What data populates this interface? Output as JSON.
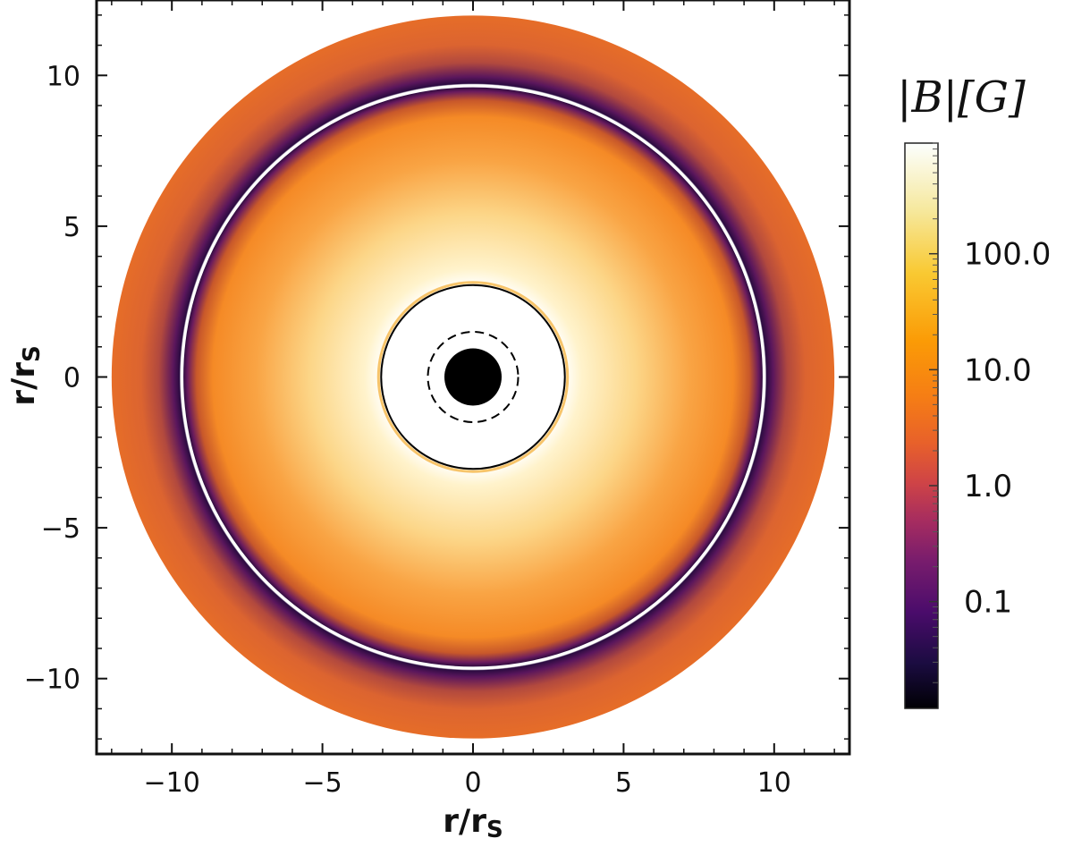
{
  "chart_data": {
    "type": "heatmap",
    "title": "",
    "xlabel": "r/r",
    "xlabel_sub": "S",
    "ylabel": "r/r",
    "ylabel_sub": "S",
    "xlim": [
      -12.5,
      12.5
    ],
    "ylim": [
      -12.5,
      12.5
    ],
    "x_ticks": [
      -10,
      -5,
      0,
      5,
      10
    ],
    "y_ticks": [
      -10,
      -5,
      0,
      5,
      10
    ],
    "x_tick_labels": [
      "−10",
      "−5",
      "0",
      "5",
      "10"
    ],
    "y_tick_labels": [
      "−10",
      "−5",
      "0",
      "5",
      "10"
    ],
    "grid": false,
    "colorbar": {
      "title": "|B|[G]",
      "scale": "log",
      "range": [
        0.012,
        900
      ],
      "ticks": [
        100.0,
        10.0,
        1.0,
        0.1
      ],
      "tick_labels": [
        "100.0",
        "10.0",
        "1.0",
        "0.1"
      ],
      "colormap": "inferno"
    },
    "rings": [
      {
        "name": "outer-boundary",
        "radius": 12.0
      },
      {
        "name": "field-null-ring",
        "radius": 9.65,
        "color": "#ffffff"
      },
      {
        "name": "inner-field-boundary",
        "radius": 3.05,
        "color": "#000000"
      },
      {
        "name": "dashed-circle",
        "radius": 1.5,
        "style": "dashed"
      },
      {
        "name": "central-disk",
        "radius": 0.95,
        "color": "#000000"
      }
    ]
  },
  "colors": {
    "background": "#ffffff",
    "outer_band": "#e2692a",
    "dark_ring": "#3a0a52",
    "inner_peak": "#fff3c4",
    "inner_hole": "#ffffff"
  }
}
